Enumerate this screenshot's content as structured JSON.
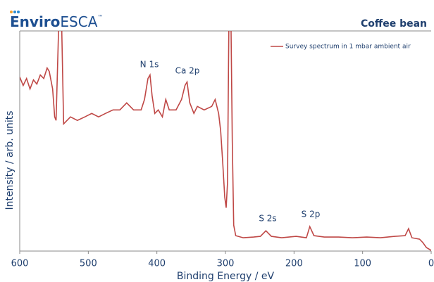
{
  "logo": {
    "bold": "Enviro",
    "regular": "ESCA",
    "mark": "™"
  },
  "chart_data": {
    "type": "line",
    "title": "Coffee bean",
    "xlabel": "Binding Energy / eV",
    "ylabel": "Intensity / arb. units",
    "xlim": [
      600,
      0
    ],
    "ylim": [
      0,
      315
    ],
    "xticks": [
      600,
      500,
      400,
      300,
      200,
      100,
      0
    ],
    "annotations": [
      "N 1s",
      "Ca 2p",
      "S 2s",
      "S 2p"
    ],
    "legend": "upper right",
    "series": [
      {
        "name": "Survey spectrum in 1 mbar ambient air",
        "color": "#bf4846",
        "x": [
          600,
          595,
          590,
          585,
          580,
          575,
          570,
          565,
          560,
          557,
          552,
          549,
          547,
          543,
          539,
          536,
          531,
          526,
          516,
          505,
          495,
          485,
          475,
          464,
          454,
          444,
          434,
          423,
          418,
          413,
          410,
          407,
          403,
          398,
          392,
          387,
          382,
          372,
          364,
          359,
          356,
          352,
          346,
          341,
          331,
          320,
          315,
          310,
          307,
          304,
          301,
          299,
          297,
          295,
          292,
          290,
          288,
          285,
          274,
          259,
          249,
          241,
          233,
          218,
          197,
          182,
          177,
          171,
          156,
          135,
          115,
          94,
          74,
          53,
          38,
          33,
          28,
          17,
          12,
          7,
          0
        ],
        "values": [
          249,
          237,
          247,
          232,
          245,
          239,
          252,
          247,
          262,
          257,
          232,
          192,
          187,
          330,
          330,
          182,
          187,
          192,
          187,
          192,
          197,
          192,
          197,
          202,
          202,
          212,
          202,
          202,
          217,
          247,
          252,
          222,
          197,
          202,
          192,
          217,
          202,
          202,
          217,
          237,
          242,
          212,
          197,
          207,
          202,
          207,
          217,
          197,
          172,
          127,
          77,
          62,
          97,
          330,
          330,
          157,
          37,
          22,
          19,
          20,
          21,
          29,
          21,
          19,
          21,
          19,
          35,
          22,
          20,
          20,
          19,
          20,
          19,
          21,
          22,
          32,
          19,
          17,
          12,
          5,
          1
        ]
      }
    ]
  }
}
